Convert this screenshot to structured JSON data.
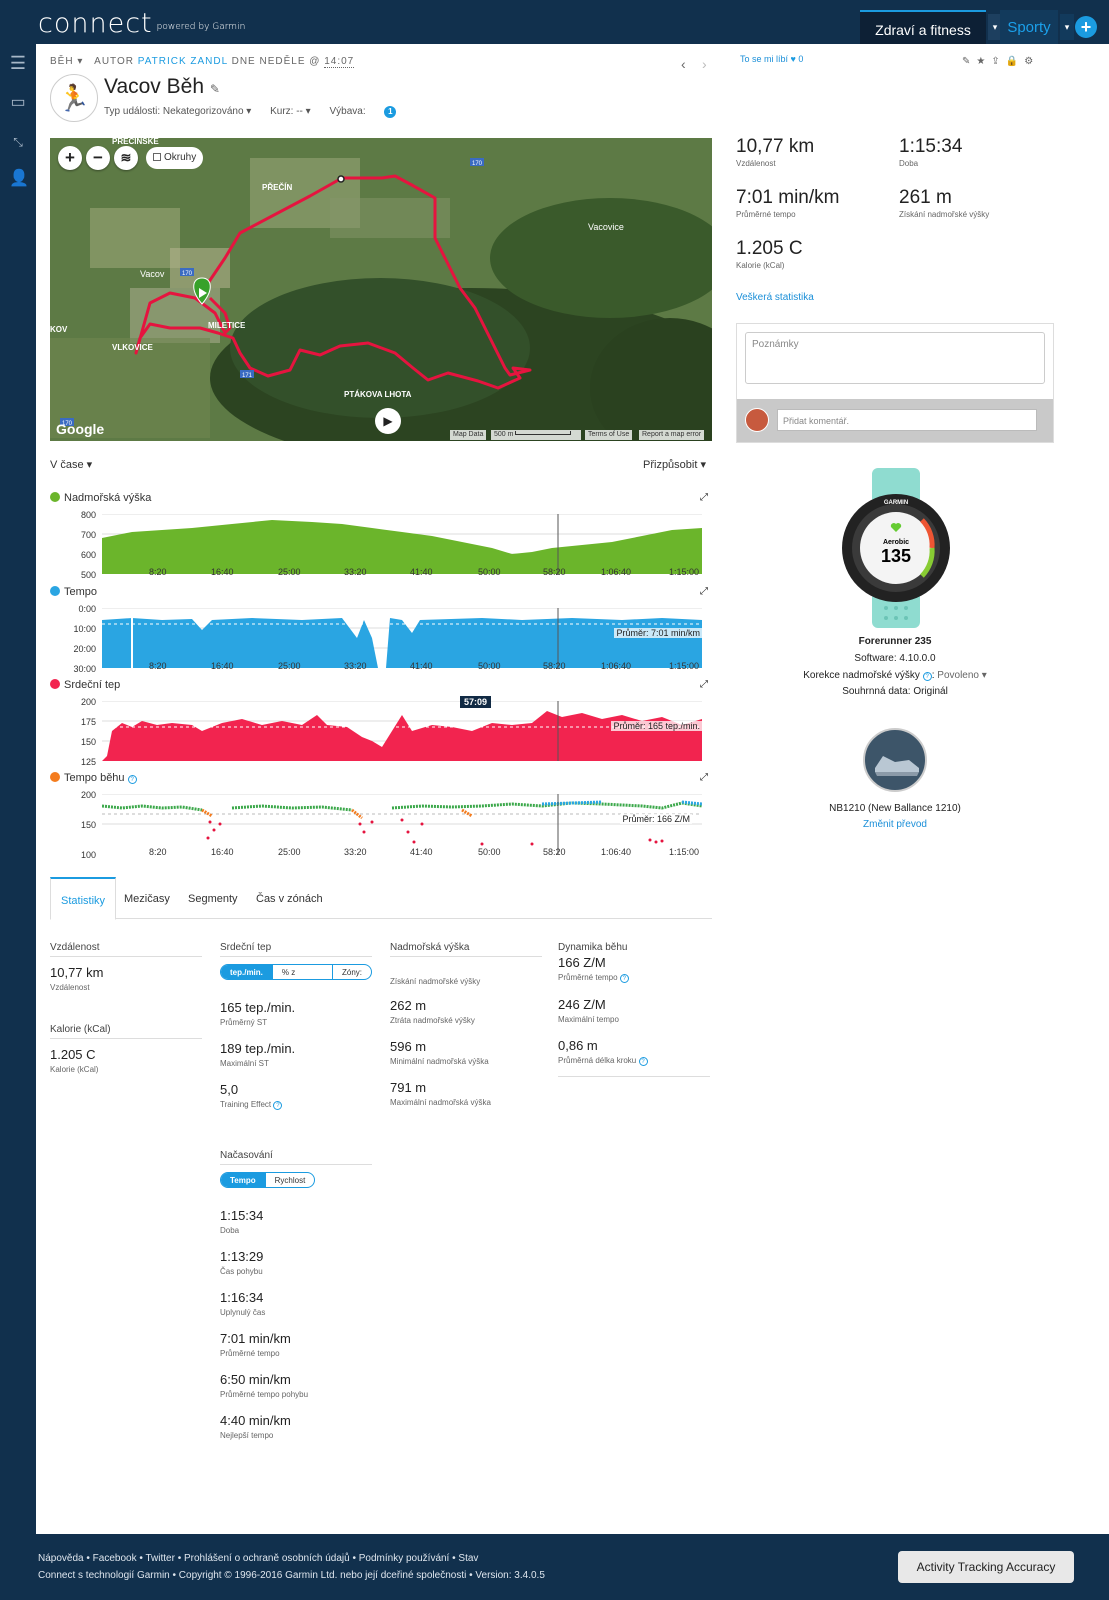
{
  "topbar": {
    "logo": "connect",
    "logo_sub": "powered by Garmin",
    "tab_health": "Zdraví a fitness",
    "tab_sports": "Sporty",
    "plus": "+"
  },
  "activity": {
    "crumb_type": "BĚH",
    "crumb_author_prefix": "AUTOR",
    "crumb_author": "PATRICK ZANDL",
    "crumb_date_prefix": "DNE NEDĚLE @",
    "crumb_time": "14:07",
    "title": "Vacov Běh",
    "event_type": "Typ události: Nekategorizováno ▾",
    "course": "Kurz: -- ▾",
    "gear_label": "Výbava:",
    "gear_count": "1"
  },
  "social": {
    "like_label": "To se mi líbí",
    "like_count": "0"
  },
  "map": {
    "laps_label": "Okruhy",
    "google": "Google",
    "attr_data": "Map Data",
    "attr_scale": "500 m",
    "attr_terms": "Terms of Use",
    "attr_report": "Report a map error",
    "places": [
      "PŘEČÍN",
      "Vacov",
      "MILETICE",
      "VLKOVICE",
      "PTÁKOVA LHOTA",
      "Vacovice",
      "KOV",
      "PRECINSKE"
    ],
    "road_numbers": [
      "170",
      "170",
      "171",
      "170"
    ]
  },
  "summary": {
    "distance": {
      "value": "10,77 km",
      "label": "Vzdálenost"
    },
    "duration": {
      "value": "1:15:34",
      "label": "Doba"
    },
    "avg_pace": {
      "value": "7:01 min/km",
      "label": "Průměrné tempo"
    },
    "elev_gain": {
      "value": "261 m",
      "label": "Získání nadmořské výšky"
    },
    "calories": {
      "value": "1.205 C",
      "label": "Kalorie (kCal)"
    },
    "all_stats_link": "Veškerá statistika"
  },
  "notes": {
    "placeholder": "Poznámky",
    "comment_placeholder": "Přidat komentář."
  },
  "view": {
    "x_mode": "V čase ▾",
    "customize": "Přizpůsobit ▾"
  },
  "charts": {
    "x_ticks": [
      "8:20",
      "16:40",
      "25:00",
      "33:20",
      "41:40",
      "50:00",
      "58:20",
      "1:06:40",
      "1:15:00"
    ],
    "elevation": {
      "title": "Nadmořská výška",
      "y_ticks": [
        "800",
        "700",
        "600",
        "500"
      ],
      "color": "#6bb52b"
    },
    "pace": {
      "title": "Tempo",
      "y_ticks": [
        "0:00",
        "10:00",
        "20:00",
        "30:00"
      ],
      "avg": "Průměr: 7:01 min/km",
      "color": "#2aa5e2"
    },
    "hr": {
      "title": "Srdeční tep",
      "y_ticks": [
        "200",
        "175",
        "150",
        "125"
      ],
      "avg": "Průměr: 165 tep./min.",
      "hover": "57:09",
      "color": "#f2244f"
    },
    "cadence": {
      "title": "Tempo běhu",
      "y_ticks": [
        "200",
        "150",
        "100"
      ],
      "avg": "Průměr: 166 Z/M",
      "color": "#f47c1e"
    }
  },
  "tabs": [
    "Statistiky",
    "Mezičasy",
    "Segmenty",
    "Čas v zónách"
  ],
  "stats": {
    "distance": {
      "head": "Vzdálenost",
      "value": "10,77 km",
      "label": "Vzdálenost"
    },
    "calories": {
      "head": "Kalorie (kCal)",
      "value": "1.205 C",
      "label": "Kalorie (kCal)"
    },
    "hr": {
      "head": "Srdeční tep",
      "seg": [
        "tep./min.",
        "% z maximální hodnoty",
        "Zóny:"
      ],
      "items": [
        {
          "value": "165 tep./min.",
          "label": "Průměrný ST"
        },
        {
          "value": "189 tep./min.",
          "label": "Maximální ST"
        },
        {
          "value": "5,0",
          "label": "Training Effect"
        }
      ]
    },
    "timing": {
      "head": "Načasování",
      "seg": [
        "Tempo",
        "Rychlost"
      ],
      "items": [
        {
          "value": "1:15:34",
          "label": "Doba"
        },
        {
          "value": "1:13:29",
          "label": "Čas pohybu"
        },
        {
          "value": "1:16:34",
          "label": "Uplynulý čas"
        },
        {
          "value": "7:01 min/km",
          "label": "Průměrné tempo"
        },
        {
          "value": "6:50 min/km",
          "label": "Průměrné tempo pohybu"
        },
        {
          "value": "4:40 min/km",
          "label": "Nejlepší tempo"
        }
      ]
    },
    "elevation": {
      "head": "Nadmořská výška",
      "first_label": "Získání nadmořské výšky",
      "items": [
        {
          "value": "262 m",
          "label": "Ztráta nadmořské výšky"
        },
        {
          "value": "596 m",
          "label": "Minimální nadmořská výška"
        },
        {
          "value": "791 m",
          "label": "Maximální nadmořská výška"
        }
      ]
    },
    "dynamics": {
      "head": "Dynamika běhu",
      "items": [
        {
          "value": "166 Z/M",
          "label": "Průměrné tempo"
        },
        {
          "value": "246 Z/M",
          "label": "Maximální tempo"
        },
        {
          "value": "0,86 m",
          "label": "Průměrná délka kroku"
        }
      ]
    }
  },
  "device": {
    "watch_brand": "GARMIN",
    "watch_mode": "Aerobic",
    "watch_value": "135",
    "name": "Forerunner 235",
    "software": "Software: 4.10.0.0",
    "elev_corr_label": "Korekce nadmořské výšky",
    "elev_corr_value": "Povoleno ▾",
    "summary_data": "Souhrnná data: Originál",
    "shoe": "NB1210 (New Ballance 1210)",
    "change_gear": "Změnit převod"
  },
  "footer": {
    "links": [
      "Nápověda",
      "Facebook",
      "Twitter",
      "Prohlášení o ochraně osobních údajů",
      "Podmínky používání",
      "Stav"
    ],
    "copyright": "Connect s technologií Garmin • Copyright © 1996-2016 Garmin Ltd. nebo její dceřiné společnosti • Version: 3.4.0.5",
    "ata_button": "Activity Tracking Accuracy"
  }
}
